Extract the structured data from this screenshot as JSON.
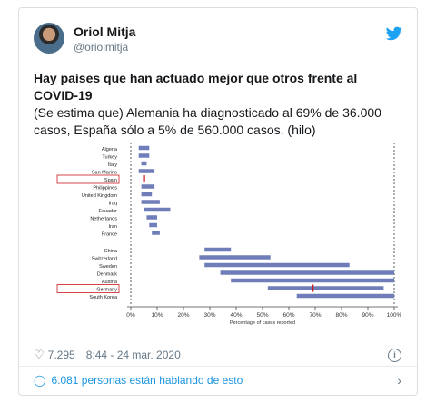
{
  "tweet": {
    "author_name": "Oriol Mitja",
    "author_handle": "@oriolmitja",
    "text_bold": "Hay países que han actuado mejor que otros frente al COVID-19",
    "text_body": "(Se estima que) Alemania ha diagnosticado al 69% de 36.000 casos, España sólo a 5% de 560.000 casos. (hilo)",
    "likes": "7.295",
    "timestamp": "8:44 - 24 mar. 2020",
    "conversation": "6.081 personas están hablando de esto"
  },
  "icons": {
    "bird": "twitter-bird-icon",
    "heart": "heart-icon",
    "info": "info-icon",
    "bubble": "comment-bubble-icon",
    "chevron": "chevron-right-icon"
  },
  "colors": {
    "accent": "#1da1f2",
    "bar": "#6f7db8",
    "marker": "#d0191f",
    "highlight": "#d0191f"
  },
  "chart_data": {
    "type": "bar",
    "orientation": "horizontal-range",
    "xlabel": "Percentage of cases reported",
    "xlim": [
      0,
      100
    ],
    "xticks": [
      "0%",
      "10%",
      "20%",
      "30%",
      "40%",
      "50%",
      "60%",
      "70%",
      "80%",
      "90%",
      "100%"
    ],
    "highlighted": [
      "Spain",
      "Germany"
    ],
    "rows": [
      {
        "country": "Algeria",
        "low": 3,
        "high": 7
      },
      {
        "country": "Turkey",
        "low": 3,
        "high": 7
      },
      {
        "country": "Italy",
        "low": 4,
        "high": 6
      },
      {
        "country": "San Marino",
        "low": 3,
        "high": 9
      },
      {
        "country": "Spain",
        "low": 5,
        "high": 5,
        "point": 5
      },
      {
        "country": "Philippines",
        "low": 4,
        "high": 9
      },
      {
        "country": "United Kingdom",
        "low": 4,
        "high": 8
      },
      {
        "country": "Iraq",
        "low": 4,
        "high": 11
      },
      {
        "country": "Ecuador",
        "low": 5,
        "high": 15
      },
      {
        "country": "Netherlands",
        "low": 6,
        "high": 10
      },
      {
        "country": "Iran",
        "low": 7,
        "high": 10
      },
      {
        "country": "France",
        "low": 8,
        "high": 11
      },
      {
        "country": "China",
        "low": 28,
        "high": 38
      },
      {
        "country": "Switzerland",
        "low": 26,
        "high": 53
      },
      {
        "country": "Sweden",
        "low": 28,
        "high": 83
      },
      {
        "country": "Denmark",
        "low": 34,
        "high": 100
      },
      {
        "country": "Austria",
        "low": 38,
        "high": 100
      },
      {
        "country": "Germany",
        "low": 52,
        "high": 96,
        "point": 69
      },
      {
        "country": "South Korea",
        "low": 63,
        "high": 100
      }
    ]
  }
}
